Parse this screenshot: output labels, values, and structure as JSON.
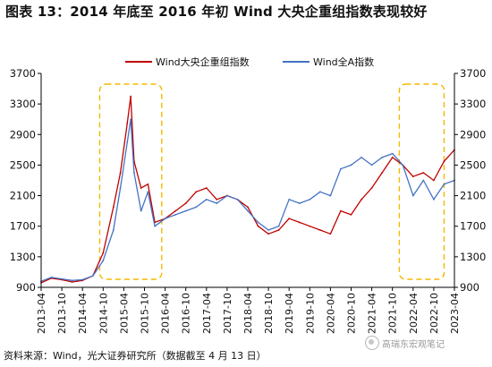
{
  "figure_title": "图表 13：2014 年底至 2016 年初 Wind 大央企重组指数表现较好",
  "source_note": "资料来源：Wind，光大证券研究所（数据截至 4 月 13 日）",
  "watermark": "高瑞东宏观笔记",
  "colors": {
    "red_series": "#c00000",
    "blue_series": "#4472c4",
    "highlight_box": "#f5b800"
  },
  "chart_data": {
    "type": "line",
    "title": "",
    "xlabel": "",
    "ylabel": "",
    "legend_position": "top-center",
    "grid": false,
    "ylim": [
      900,
      3700
    ],
    "yticks": [
      900,
      1300,
      1700,
      2100,
      2500,
      2900,
      3300,
      3700
    ],
    "y_tick_labels": [
      "900",
      "1300",
      "1700",
      "2100",
      "2500",
      "2900",
      "3300",
      "3700"
    ],
    "y2_tick_labels": [
      "900",
      "1300",
      "1700",
      "2100",
      "2500",
      "2900",
      "3300",
      "3700"
    ],
    "xlim": [
      "2013-04",
      "2023-04"
    ],
    "x_tick_labels": [
      "2013-04",
      "2013-10",
      "2014-04",
      "2014-10",
      "2015-04",
      "2015-10",
      "2016-04",
      "2016-10",
      "2017-04",
      "2017-10",
      "2018-04",
      "2018-10",
      "2019-04",
      "2019-10",
      "2020-04",
      "2020-10",
      "2021-04",
      "2021-10",
      "2022-04",
      "2022-10",
      "2023-04"
    ],
    "highlight_periods": [
      {
        "start": "2014-09",
        "end": "2016-03"
      },
      {
        "start": "2021-12",
        "end": "2023-01"
      }
    ],
    "series": [
      {
        "name": "Wind大央企重组指数",
        "color": "#c00000",
        "x": [
          "2013-04",
          "2013-07",
          "2013-10",
          "2014-01",
          "2014-04",
          "2014-07",
          "2014-10",
          "2015-01",
          "2015-03",
          "2015-05",
          "2015-06",
          "2015-07",
          "2015-09",
          "2015-11",
          "2016-01",
          "2016-04",
          "2016-07",
          "2016-10",
          "2017-01",
          "2017-04",
          "2017-07",
          "2017-10",
          "2018-01",
          "2018-04",
          "2018-07",
          "2018-10",
          "2019-01",
          "2019-04",
          "2019-07",
          "2019-10",
          "2020-01",
          "2020-04",
          "2020-07",
          "2020-10",
          "2021-01",
          "2021-04",
          "2021-07",
          "2021-10",
          "2022-01",
          "2022-04",
          "2022-07",
          "2022-10",
          "2023-01",
          "2023-04"
        ],
        "y": [
          960,
          1020,
          1000,
          970,
          990,
          1050,
          1350,
          1950,
          2400,
          3050,
          3400,
          2550,
          2200,
          2250,
          1750,
          1800,
          1900,
          2000,
          2150,
          2200,
          2050,
          2100,
          2050,
          1950,
          1700,
          1600,
          1650,
          1800,
          1750,
          1700,
          1650,
          1600,
          1900,
          1850,
          2050,
          2200,
          2400,
          2600,
          2500,
          2350,
          2400,
          2300,
          2550,
          2700
        ]
      },
      {
        "name": "Wind全A指数",
        "color": "#4472c4",
        "x": [
          "2013-04",
          "2013-07",
          "2013-10",
          "2014-01",
          "2014-04",
          "2014-07",
          "2014-10",
          "2015-01",
          "2015-03",
          "2015-05",
          "2015-06",
          "2015-07",
          "2015-09",
          "2015-11",
          "2016-01",
          "2016-04",
          "2016-07",
          "2016-10",
          "2017-01",
          "2017-04",
          "2017-07",
          "2017-10",
          "2018-01",
          "2018-04",
          "2018-07",
          "2018-10",
          "2019-01",
          "2019-04",
          "2019-07",
          "2019-10",
          "2020-01",
          "2020-04",
          "2020-07",
          "2020-10",
          "2021-01",
          "2021-04",
          "2021-07",
          "2021-10",
          "2022-01",
          "2022-04",
          "2022-07",
          "2022-10",
          "2023-01",
          "2023-04"
        ],
        "y": [
          980,
          1030,
          1010,
          990,
          1000,
          1050,
          1250,
          1650,
          2200,
          2800,
          3100,
          2400,
          1900,
          2150,
          1700,
          1800,
          1850,
          1900,
          1950,
          2050,
          2000,
          2100,
          2050,
          1900,
          1750,
          1650,
          1700,
          2050,
          2000,
          2050,
          2150,
          2100,
          2450,
          2500,
          2600,
          2500,
          2600,
          2650,
          2500,
          2100,
          2300,
          2050,
          2250,
          2300
        ]
      }
    ]
  }
}
